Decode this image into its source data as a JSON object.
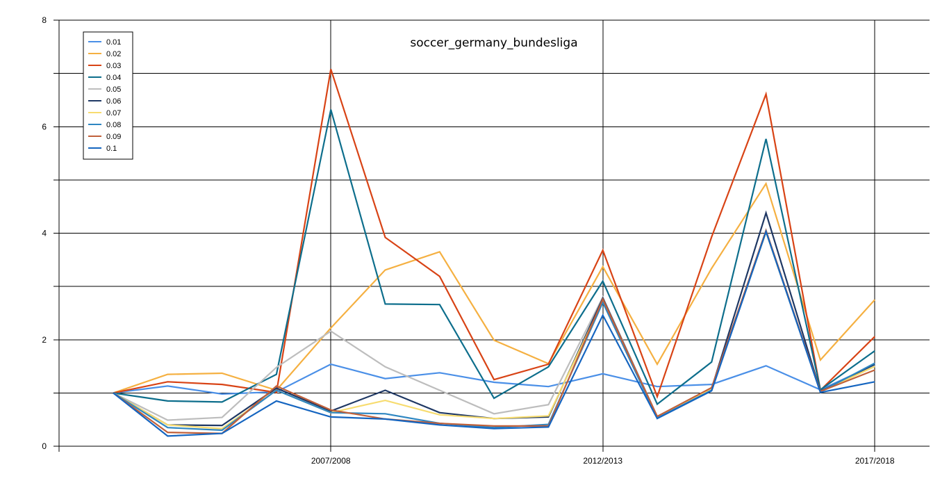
{
  "chart_data": {
    "type": "line",
    "title": "soccer_germany_bundesliga",
    "xlabel": "",
    "ylabel": "",
    "ylim": [
      0,
      8
    ],
    "y_ticks": [
      0,
      2,
      4,
      6,
      8
    ],
    "y_tick_labels": [
      "0",
      "2",
      "4",
      "6",
      "8"
    ],
    "y_gridlines": [
      0,
      1,
      2,
      3,
      4,
      5,
      6,
      7,
      8
    ],
    "x_tick_labels": [
      {
        "index": 4,
        "label": "2007/2008"
      },
      {
        "index": 9,
        "label": "2012/2013"
      },
      {
        "index": 14,
        "label": "2017/2018"
      }
    ],
    "grid": true,
    "legend": "top-left",
    "n_points": 15,
    "series": [
      {
        "name": "0.01",
        "color": "#4A8FE7",
        "values": [
          1.0,
          1.13,
          0.98,
          1.02,
          1.54,
          1.27,
          1.38,
          1.2,
          1.12,
          1.36,
          1.12,
          1.16,
          1.51,
          1.06,
          1.53
        ]
      },
      {
        "name": "0.02",
        "color": "#F5B041",
        "values": [
          1.0,
          1.35,
          1.37,
          1.05,
          2.22,
          3.31,
          3.65,
          1.99,
          1.55,
          3.37,
          1.54,
          3.34,
          4.93,
          1.62,
          2.75
        ]
      },
      {
        "name": "0.03",
        "color": "#D84315",
        "values": [
          1.0,
          1.21,
          1.16,
          1.01,
          7.08,
          3.92,
          3.19,
          1.25,
          1.54,
          3.68,
          0.93,
          3.93,
          6.61,
          1.05,
          2.06
        ]
      },
      {
        "name": "0.04",
        "color": "#0D6E8C",
        "values": [
          1.0,
          0.85,
          0.83,
          1.35,
          6.32,
          2.67,
          2.66,
          0.9,
          1.49,
          3.1,
          0.79,
          1.58,
          5.77,
          1.06,
          1.79
        ]
      },
      {
        "name": "0.05",
        "color": "#BDBDBD",
        "values": [
          1.0,
          0.49,
          0.54,
          1.48,
          2.16,
          1.49,
          1.05,
          0.61,
          0.78,
          2.8,
          0.56,
          1.07,
          4.05,
          1.03,
          1.5
        ]
      },
      {
        "name": "0.06",
        "color": "#1F3864",
        "values": [
          1.0,
          0.4,
          0.39,
          1.09,
          0.66,
          1.05,
          0.63,
          0.52,
          0.55,
          2.78,
          0.55,
          1.08,
          4.38,
          1.03,
          1.54
        ]
      },
      {
        "name": "0.07",
        "color": "#F7DC6F",
        "values": [
          1.0,
          0.4,
          0.33,
          1.05,
          0.63,
          0.86,
          0.59,
          0.52,
          0.57,
          2.72,
          0.55,
          1.07,
          4.02,
          1.02,
          1.5
        ]
      },
      {
        "name": "0.08",
        "color": "#2E86C1",
        "values": [
          1.0,
          0.35,
          0.3,
          1.05,
          0.63,
          0.61,
          0.43,
          0.35,
          0.41,
          2.7,
          0.53,
          1.05,
          4.03,
          1.02,
          1.56
        ]
      },
      {
        "name": "0.09",
        "color": "#C0603A",
        "values": [
          1.0,
          0.26,
          0.24,
          1.13,
          0.68,
          0.51,
          0.43,
          0.38,
          0.38,
          2.76,
          0.56,
          1.1,
          4.05,
          1.03,
          1.43
        ]
      },
      {
        "name": "0.1",
        "color": "#1565C0",
        "values": [
          1.0,
          0.19,
          0.24,
          0.85,
          0.55,
          0.51,
          0.4,
          0.33,
          0.36,
          2.46,
          0.52,
          1.04,
          4.03,
          1.01,
          1.21
        ]
      }
    ]
  }
}
